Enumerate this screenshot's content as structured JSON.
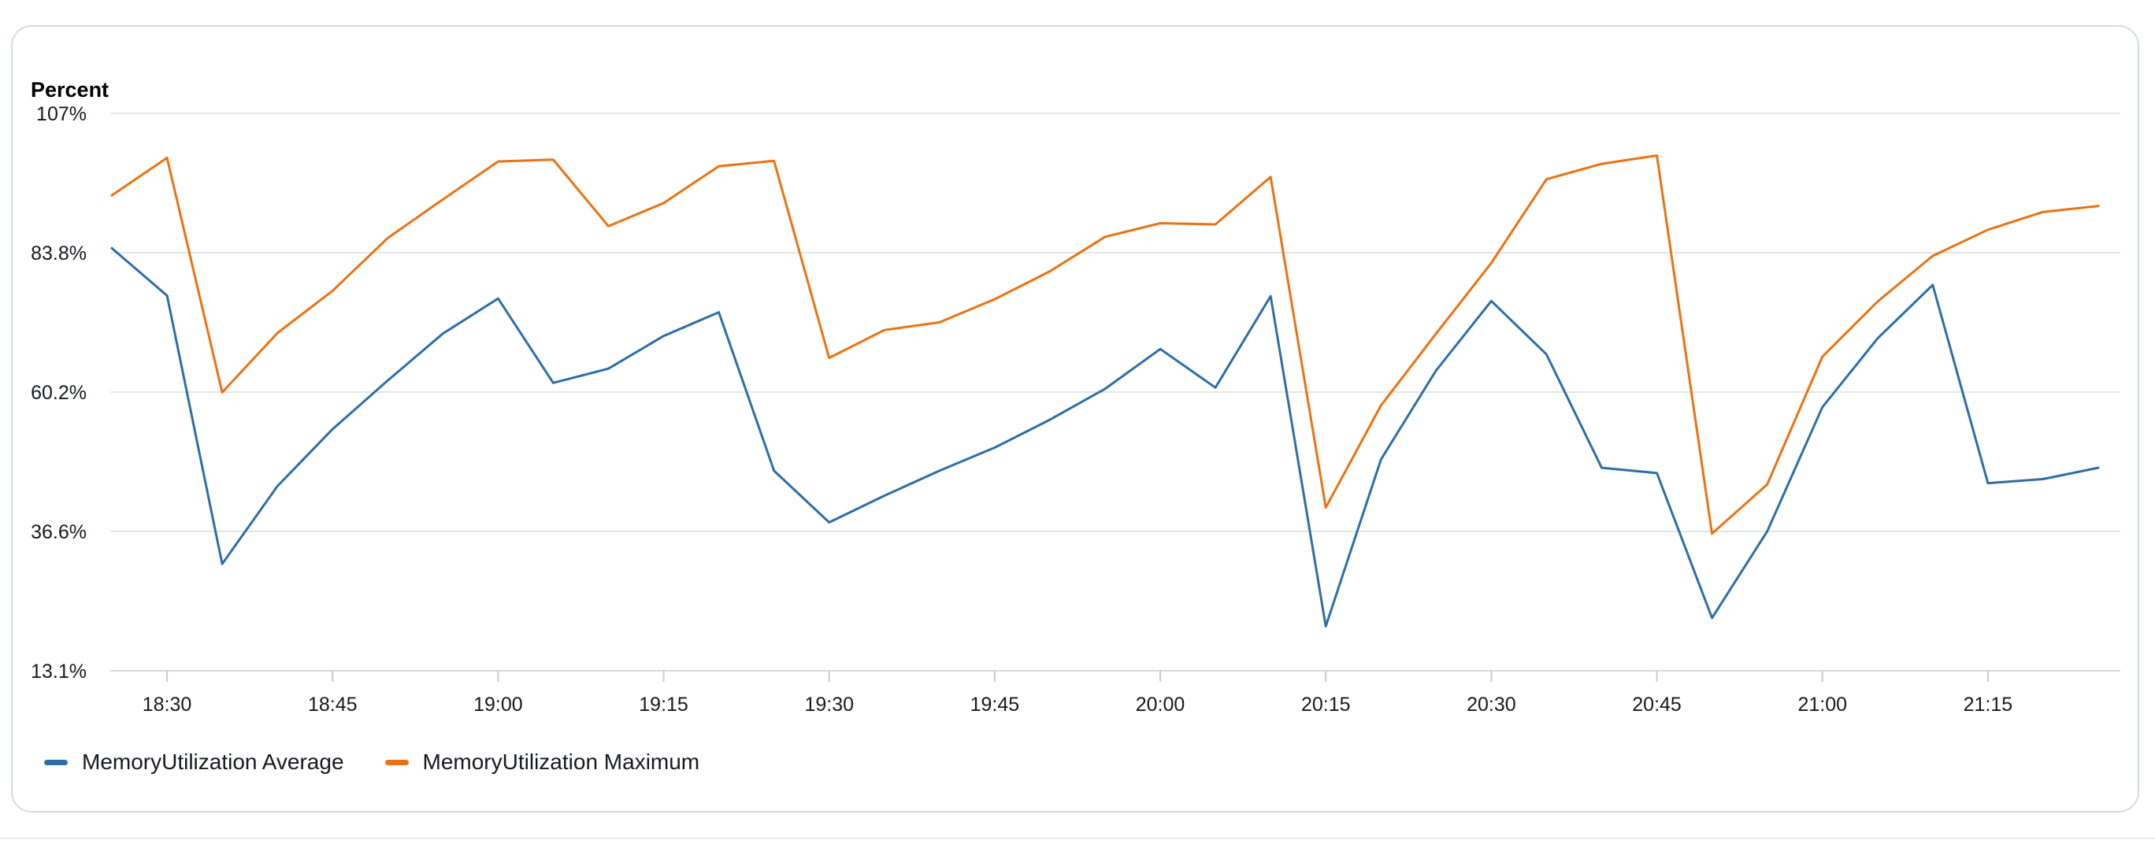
{
  "chart_data": {
    "type": "line",
    "ylabel": "Percent",
    "y_ticks": [
      "107%",
      "83.8%",
      "60.2%",
      "36.6%",
      "13.1%"
    ],
    "ylim": [
      13.1,
      107
    ],
    "x_ticks": [
      "18:30",
      "18:45",
      "19:00",
      "19:15",
      "19:30",
      "19:45",
      "20:00",
      "20:15",
      "20:30",
      "20:45",
      "21:00",
      "21:15"
    ],
    "x": [
      "18:25",
      "18:30",
      "18:35",
      "18:40",
      "18:45",
      "18:50",
      "18:55",
      "19:00",
      "19:05",
      "19:10",
      "19:15",
      "19:20",
      "19:25",
      "19:30",
      "19:35",
      "19:40",
      "19:45",
      "19:50",
      "19:55",
      "20:00",
      "20:05",
      "20:10",
      "20:15",
      "20:20",
      "20:25",
      "20:30",
      "20:35",
      "20:40",
      "20:45",
      "20:50",
      "20:55",
      "21:00",
      "21:05",
      "21:10",
      "21:15",
      "21:20",
      "21:25"
    ],
    "xlim": [
      "18:25",
      "21:25"
    ],
    "grid": true,
    "legend_position": "bottom-left",
    "series": [
      {
        "name": "MemoryUtilization Average",
        "color": "#2e6ea6",
        "values": [
          84.3,
          76.3,
          31.1,
          44.2,
          53.8,
          62.0,
          69.9,
          75.8,
          61.6,
          64.0,
          69.5,
          73.5,
          46.8,
          38.1,
          42.6,
          46.8,
          50.7,
          55.4,
          60.6,
          67.3,
          60.8,
          76.2,
          20.6,
          48.7,
          63.7,
          75.4,
          66.4,
          47.3,
          46.4,
          22.0,
          36.6,
          57.5,
          69.1,
          78.1,
          44.7,
          45.4,
          47.3
        ]
      },
      {
        "name": "MemoryUtilization Maximum",
        "color": "#ec7211",
        "values": [
          93.2,
          99.5,
          60.0,
          70.0,
          77.1,
          86.0,
          92.5,
          98.9,
          99.2,
          88.0,
          91.9,
          98.1,
          99.0,
          65.8,
          70.5,
          71.8,
          75.7,
          80.4,
          86.2,
          88.5,
          88.3,
          96.3,
          40.6,
          57.8,
          69.9,
          81.8,
          95.9,
          98.5,
          99.9,
          36.2,
          44.5,
          66.0,
          75.3,
          83.0,
          87.4,
          90.4,
          91.4
        ]
      }
    ]
  }
}
